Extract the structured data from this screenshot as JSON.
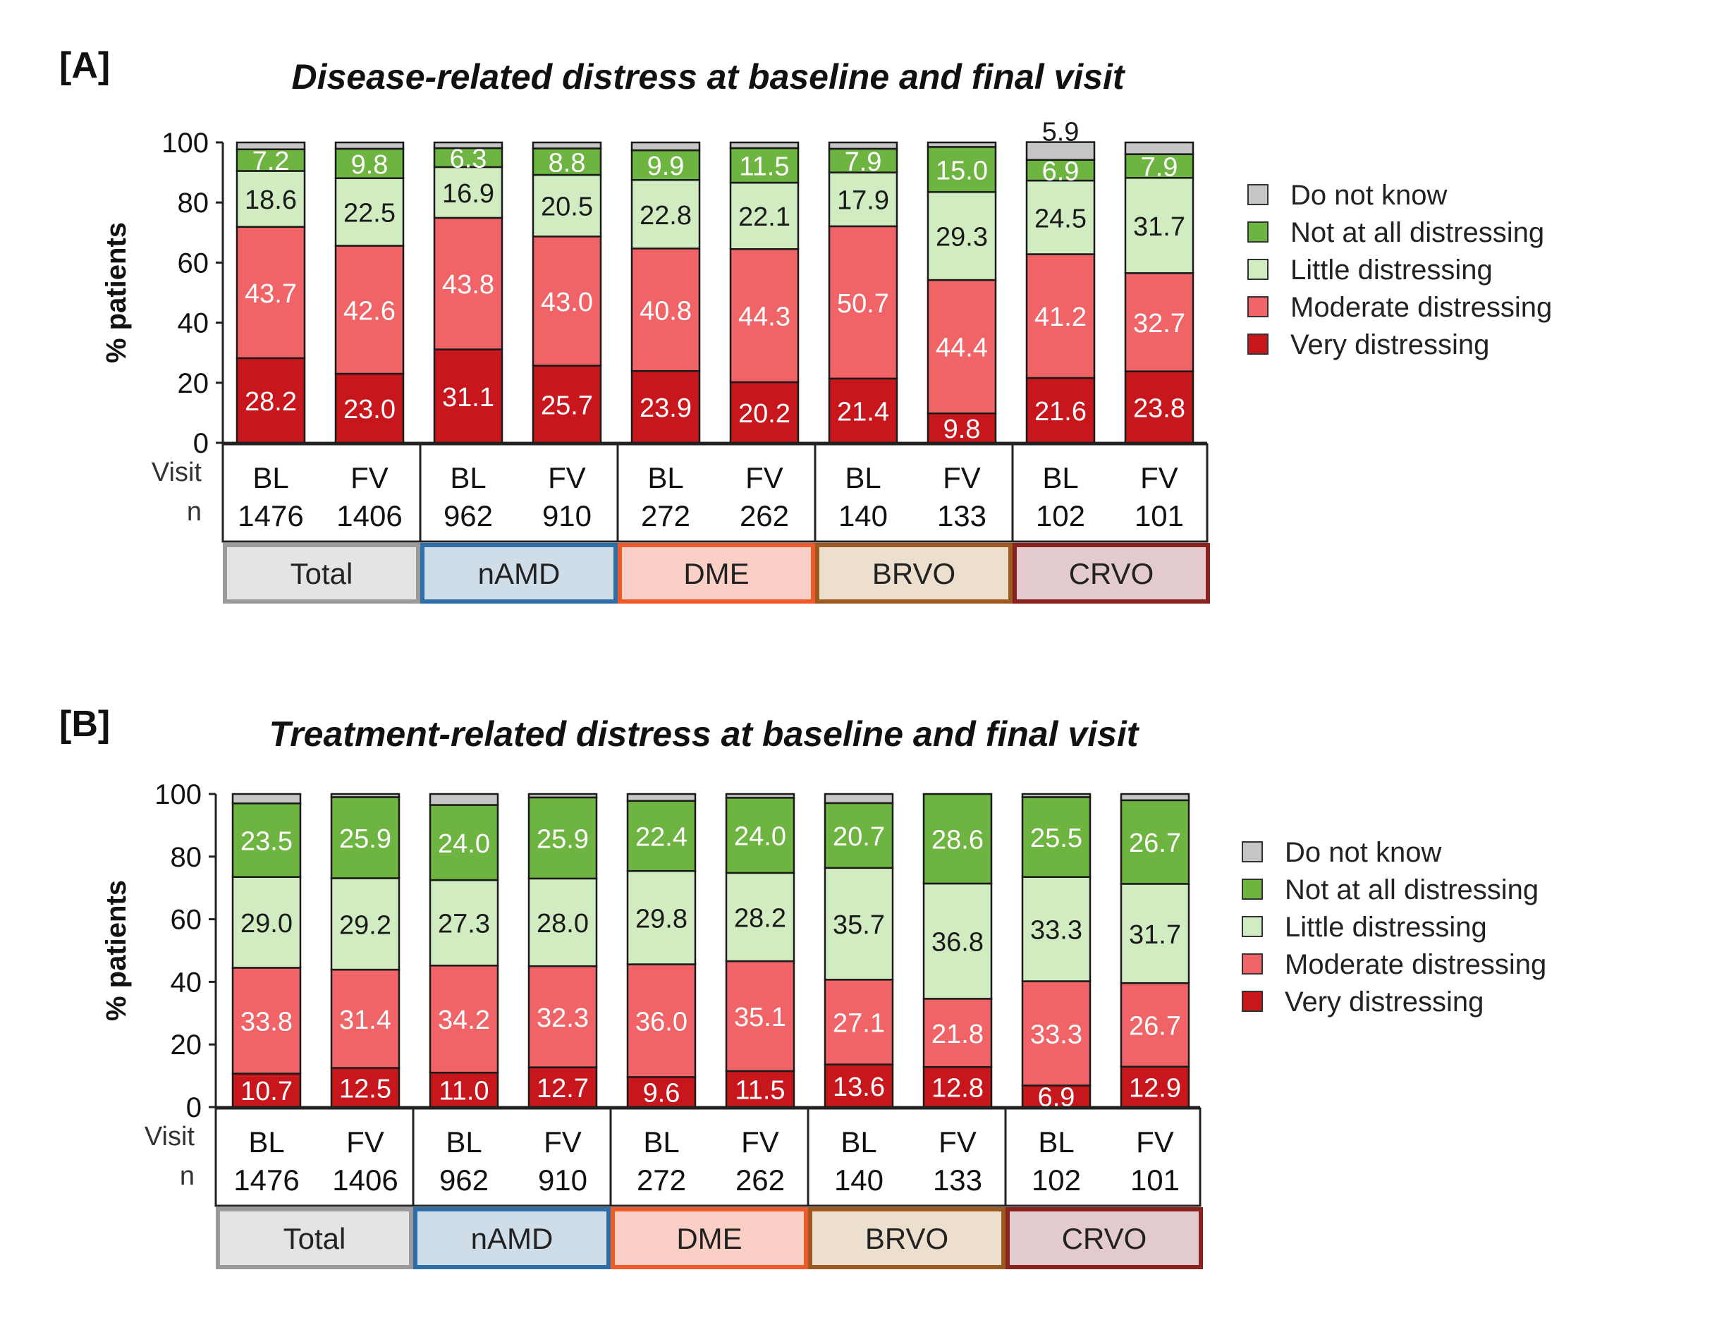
{
  "legend": {
    "items": [
      {
        "key": "dk",
        "label": "Do not know",
        "color": "#c6c6c6"
      },
      {
        "key": "na",
        "label": "Not at all distressing",
        "color": "#6eb441"
      },
      {
        "key": "li",
        "label": "Little distressing",
        "color": "#d2ecc2"
      },
      {
        "key": "mo",
        "label": "Moderate distressing",
        "color": "#f06467"
      },
      {
        "key": "vd",
        "label": "Very distressing",
        "color": "#c8161d"
      }
    ]
  },
  "axis_labels": {
    "row_visit": "Visit",
    "row_n": "n"
  },
  "groups": [
    {
      "label": "Total",
      "fill": "#e3e4e6",
      "border": "#9a9a9a"
    },
    {
      "label": "nAMD",
      "fill": "#cfdde9",
      "border": "#2e6fa7"
    },
    {
      "label": "DME",
      "fill": "#fad0c6",
      "border": "#ee5a2a"
    },
    {
      "label": "BRVO",
      "fill": "#ecdfcd",
      "border": "#9c5a20"
    },
    {
      "label": "CRVO",
      "fill": "#e3cbcd",
      "border": "#8a2320"
    }
  ],
  "chart_data": [
    {
      "panel": "[A]",
      "type": "bar",
      "stacked": true,
      "title": "Disease-related distress at baseline and final visit",
      "ylabel": "% patients",
      "ylim": [
        0,
        100
      ],
      "yticks": [
        "0",
        "20",
        "40",
        "60",
        "80",
        "100"
      ],
      "categories": [
        "BL",
        "FV",
        "BL",
        "FV",
        "BL",
        "FV",
        "BL",
        "FV",
        "BL",
        "FV"
      ],
      "n": [
        "1476",
        "1406",
        "962",
        "910",
        "272",
        "262",
        "140",
        "133",
        "102",
        "101"
      ],
      "series": [
        {
          "name": "Very distressing",
          "values": [
            28.2,
            23.0,
            31.1,
            25.7,
            23.9,
            20.2,
            21.4,
            9.8,
            21.6,
            23.8
          ],
          "labels": [
            "28.2",
            "23.0",
            "31.1",
            "25.7",
            "23.9",
            "20.2",
            "21.4",
            "9.8",
            "21.6",
            "23.8"
          ]
        },
        {
          "name": "Moderate distressing",
          "values": [
            43.7,
            42.6,
            43.8,
            43.0,
            40.8,
            44.3,
            50.7,
            44.4,
            41.2,
            32.7
          ],
          "labels": [
            "43.7",
            "42.6",
            "43.8",
            "43.0",
            "40.8",
            "44.3",
            "50.7",
            "44.4",
            "41.2",
            "32.7"
          ]
        },
        {
          "name": "Little distressing",
          "values": [
            18.6,
            22.5,
            16.9,
            20.5,
            22.8,
            22.1,
            17.9,
            29.3,
            24.5,
            31.7
          ],
          "labels": [
            "18.6",
            "22.5",
            "16.9",
            "20.5",
            "22.8",
            "22.1",
            "17.9",
            "29.3",
            "24.5",
            "31.7"
          ]
        },
        {
          "name": "Not at all distressing",
          "values": [
            7.2,
            9.8,
            6.3,
            8.8,
            9.9,
            11.5,
            7.9,
            15.0,
            6.9,
            7.9
          ],
          "labels": [
            "7.2",
            "9.8",
            "6.3",
            "8.8",
            "9.9",
            "11.5",
            "7.9",
            "15.0",
            "6.9",
            "7.9"
          ]
        },
        {
          "name": "Do not know",
          "values": [
            2.3,
            2.1,
            1.9,
            2.0,
            2.6,
            1.9,
            2.1,
            1.5,
            5.9,
            3.9
          ],
          "labels": [
            "",
            "",
            "",
            "",
            "",
            "",
            "",
            "",
            "5.9",
            ""
          ]
        }
      ]
    },
    {
      "panel": "[B]",
      "type": "bar",
      "stacked": true,
      "title": "Treatment-related distress at baseline and final visit",
      "ylabel": "% patients",
      "ylim": [
        0,
        100
      ],
      "yticks": [
        "0",
        "20",
        "40",
        "60",
        "80",
        "100"
      ],
      "categories": [
        "BL",
        "FV",
        "BL",
        "FV",
        "BL",
        "FV",
        "BL",
        "FV",
        "BL",
        "FV"
      ],
      "n": [
        "1476",
        "1406",
        "962",
        "910",
        "272",
        "262",
        "140",
        "133",
        "102",
        "101"
      ],
      "series": [
        {
          "name": "Very distressing",
          "values": [
            10.7,
            12.5,
            11.0,
            12.7,
            9.6,
            11.5,
            13.6,
            12.8,
            6.9,
            12.9
          ],
          "labels": [
            "10.7",
            "12.5",
            "11.0",
            "12.7",
            "9.6",
            "11.5",
            "13.6",
            "12.8",
            "6.9",
            "12.9"
          ]
        },
        {
          "name": "Moderate distressing",
          "values": [
            33.8,
            31.4,
            34.2,
            32.3,
            36.0,
            35.1,
            27.1,
            21.8,
            33.3,
            26.7
          ],
          "labels": [
            "33.8",
            "31.4",
            "34.2",
            "32.3",
            "36.0",
            "35.1",
            "27.1",
            "21.8",
            "33.3",
            "26.7"
          ]
        },
        {
          "name": "Little distressing",
          "values": [
            29.0,
            29.2,
            27.3,
            28.0,
            29.8,
            28.2,
            35.7,
            36.8,
            33.3,
            31.7
          ],
          "labels": [
            "29.0",
            "29.2",
            "27.3",
            "28.0",
            "29.8",
            "28.2",
            "35.7",
            "36.8",
            "33.3",
            "31.7"
          ]
        },
        {
          "name": "Not at all distressing",
          "values": [
            23.5,
            25.9,
            24.0,
            25.9,
            22.4,
            24.0,
            20.7,
            28.6,
            25.5,
            26.7
          ],
          "labels": [
            "23.5",
            "25.9",
            "24.0",
            "25.9",
            "22.4",
            "24.0",
            "20.7",
            "28.6",
            "25.5",
            "26.7"
          ]
        },
        {
          "name": "Do not know",
          "values": [
            3.0,
            1.0,
            3.5,
            1.1,
            2.2,
            1.2,
            2.9,
            0.0,
            1.0,
            2.0
          ],
          "labels": [
            "",
            "",
            "",
            "",
            "",
            "",
            "",
            "",
            "",
            ""
          ]
        }
      ]
    }
  ]
}
